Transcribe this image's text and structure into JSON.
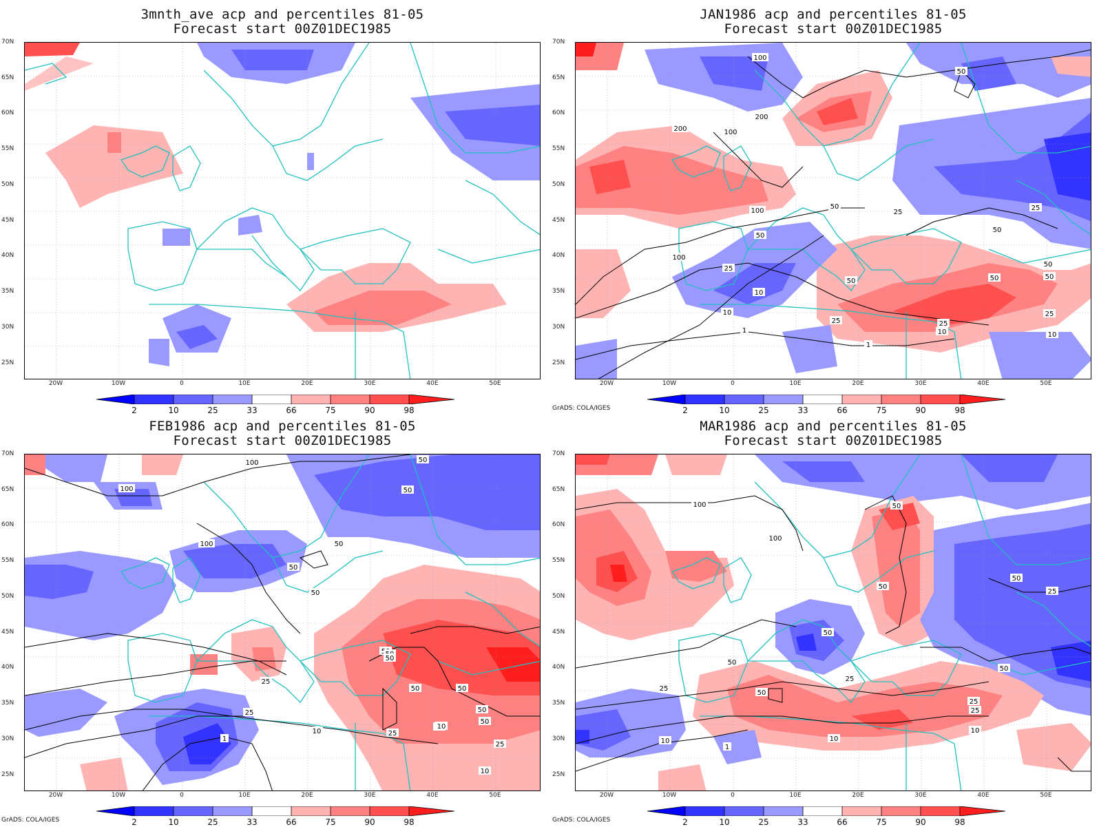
{
  "panels": [
    {
      "title": "3mnth_ave acp and percentiles 81-05",
      "subtitle": "Forecast start 00Z01DEC1985",
      "credit": ""
    },
    {
      "title": "JAN1986 acp and percentiles 81-05",
      "subtitle": "Forecast start 00Z01DEC1985",
      "credit": "GrADS: COLA/IGES"
    },
    {
      "title": "FEB1986 acp and percentiles 81-05",
      "subtitle": "Forecast start 00Z01DEC1985",
      "credit": "GrADS: COLA/IGES"
    },
    {
      "title": "MAR1986 acp and percentiles 81-05",
      "subtitle": "Forecast start 00Z01DEC1985",
      "credit": "GrADS: COLA/IGES"
    }
  ],
  "lat_labels": [
    "70N",
    "65N",
    "60N",
    "55N",
    "50N",
    "45N",
    "40N",
    "35N",
    "30N",
    "25N"
  ],
  "lon_labels": [
    "20W",
    "10W",
    "0",
    "10E",
    "20E",
    "30E",
    "40E",
    "50E"
  ],
  "colorbar": {
    "labels": [
      "2",
      "10",
      "25",
      "33",
      "66",
      "75",
      "90",
      "98"
    ],
    "colors": [
      "#0000ff",
      "#3333ff",
      "#6666ff",
      "#9999ff",
      "#ccccff",
      "#ffffff",
      "#ffb4b4",
      "#ff8282",
      "#ff5050",
      "#ff1e1e",
      "#ff0000"
    ]
  },
  "contour_labels": {
    "jan": [
      "100",
      "50",
      "200",
      "200",
      "100",
      "50",
      "100",
      "50",
      "25",
      "50",
      "100",
      "50",
      "25",
      "50",
      "25",
      "10",
      "50",
      "25",
      "10",
      "1",
      "1",
      "25",
      "10",
      "50",
      "25",
      "10"
    ],
    "feb": [
      "50",
      "100",
      "100",
      "50",
      "100",
      "50",
      "50",
      "50",
      "50",
      "25",
      "50",
      "50",
      "50",
      "50",
      "50",
      "25",
      "1",
      "10",
      "10",
      "25",
      "50",
      "10",
      "25",
      "10"
    ],
    "mar": [
      "100",
      "50",
      "100",
      "50",
      "50",
      "25",
      "50",
      "50",
      "50",
      "25",
      "50",
      "25",
      "1",
      "25",
      "10",
      "25",
      "10",
      "10"
    ]
  }
}
